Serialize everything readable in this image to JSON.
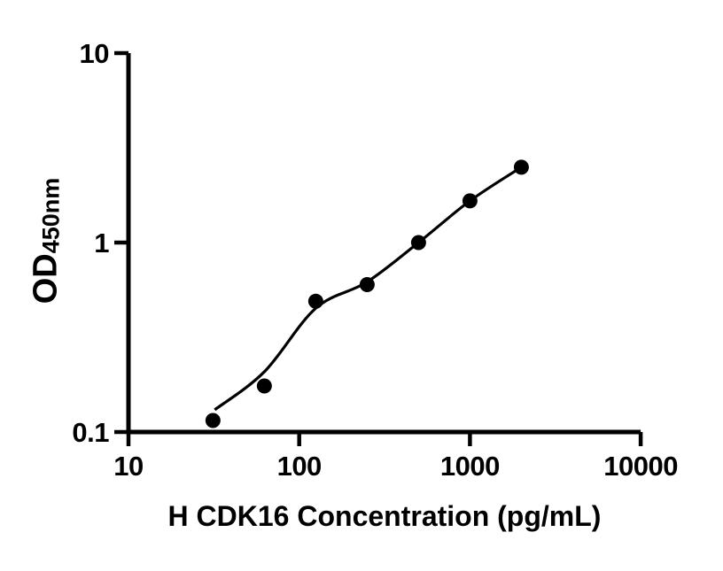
{
  "figure": {
    "background_color": "#ffffff"
  },
  "chart_data": {
    "type": "scatter",
    "title": "",
    "xlabel": "H CDK16 Concentration (pg/mL)",
    "ylabel": "OD",
    "ylabel_sub": "450nm",
    "x_scale": "log",
    "y_scale": "log",
    "xlim": [
      10,
      10000
    ],
    "ylim": [
      0.1,
      10
    ],
    "x_ticks": [
      10,
      100,
      1000,
      10000
    ],
    "x_tick_labels": [
      "10",
      "100",
      "1000",
      "10000"
    ],
    "y_ticks": [
      0.1,
      1,
      10
    ],
    "y_tick_labels": [
      "0.1",
      "1",
      "10"
    ],
    "grid": false,
    "legend": null,
    "axis_color": "#000000",
    "series": [
      {
        "name": "fitted standard curve",
        "type": "line",
        "line_color": "#000000",
        "line_width": 3.2,
        "points": [
          {
            "x": 32,
            "y": 0.131
          },
          {
            "x": 62.5,
            "y": 0.208
          },
          {
            "x": 125,
            "y": 0.45
          },
          {
            "x": 250,
            "y": 0.62
          },
          {
            "x": 500,
            "y": 1.0
          },
          {
            "x": 1000,
            "y": 1.66
          },
          {
            "x": 2000,
            "y": 2.5
          }
        ]
      },
      {
        "name": "standard data points",
        "type": "scatter",
        "marker_color": "#000000",
        "marker_radius": 8.5,
        "points": [
          {
            "x": 31.25,
            "y": 0.115
          },
          {
            "x": 62.5,
            "y": 0.175
          },
          {
            "x": 125,
            "y": 0.49
          },
          {
            "x": 250,
            "y": 0.6
          },
          {
            "x": 500,
            "y": 1.0
          },
          {
            "x": 1000,
            "y": 1.66
          },
          {
            "x": 2000,
            "y": 2.5
          }
        ]
      }
    ]
  }
}
